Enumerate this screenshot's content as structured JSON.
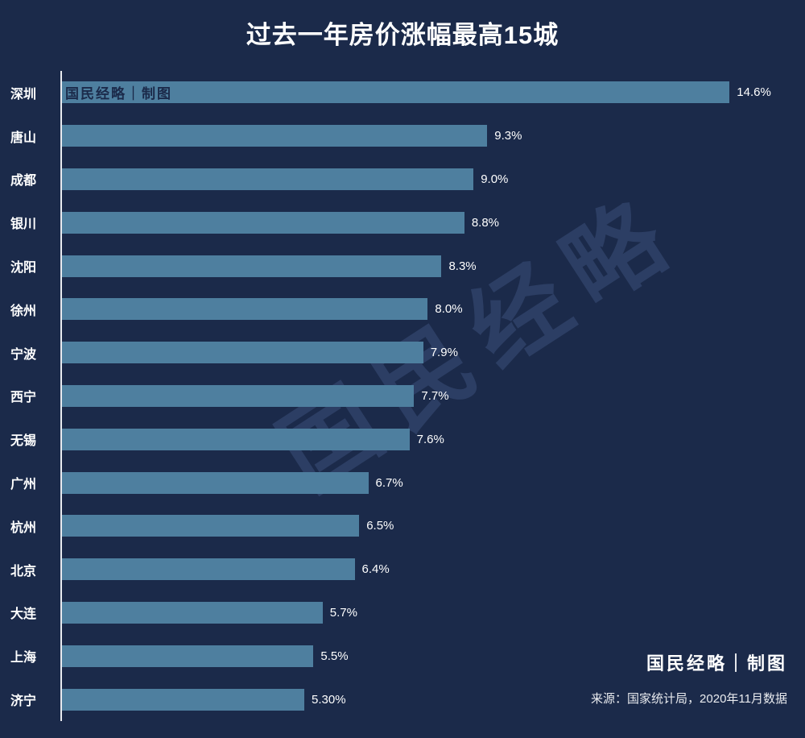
{
  "title": "过去一年房价涨幅最高15城",
  "chart_data": {
    "type": "bar",
    "orientation": "horizontal",
    "title": "过去一年房价涨幅最高15城",
    "categories": [
      "深圳",
      "唐山",
      "成都",
      "银川",
      "沈阳",
      "徐州",
      "宁波",
      "西宁",
      "无锡",
      "广州",
      "杭州",
      "北京",
      "大连",
      "上海",
      "济宁"
    ],
    "values": [
      14.6,
      9.3,
      9.0,
      8.8,
      8.3,
      8.0,
      7.9,
      7.7,
      7.6,
      6.7,
      6.5,
      6.4,
      5.7,
      5.5,
      5.3
    ],
    "value_labels": [
      "14.6%",
      "9.3%",
      "9.0%",
      "8.8%",
      "8.3%",
      "8.0%",
      "7.9%",
      "7.7%",
      "7.6%",
      "6.7%",
      "6.5%",
      "6.4%",
      "5.7%",
      "5.5%",
      "5.30%"
    ],
    "xlabel": "",
    "ylabel": "",
    "xlim": [
      0,
      16.2
    ],
    "grid": false,
    "legend": "none",
    "bar_color": "#4e7f9f",
    "background_color": "#1b2a4a",
    "axis_color": "#e8eaef"
  },
  "watermarks": {
    "in_bar": "国民经略｜制图",
    "diagonal": "国民经略"
  },
  "footer": {
    "credit": "国民经略｜制图",
    "source": "来源：国家统计局，2020年11月数据"
  }
}
